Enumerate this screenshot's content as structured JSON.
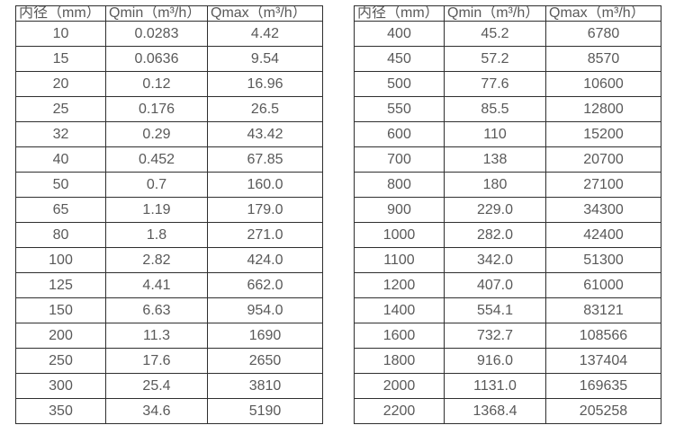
{
  "colors": {
    "table_border": "#2f2f2f",
    "table_text": "#595959",
    "background": "#ffffff"
  },
  "chart_data": [
    {
      "type": "table",
      "columns": [
        "内径（mm）",
        "Qmin（m³/h）",
        "Qmax（m³/h）"
      ],
      "rows": [
        [
          "10",
          "0.0283",
          "4.42"
        ],
        [
          "15",
          "0.0636",
          "9.54"
        ],
        [
          "20",
          "0.12",
          "16.96"
        ],
        [
          "25",
          "0.176",
          "26.5"
        ],
        [
          "32",
          "0.29",
          "43.42"
        ],
        [
          "40",
          "0.452",
          "67.85"
        ],
        [
          "50",
          "0.7",
          "160.0"
        ],
        [
          "65",
          "1.19",
          "179.0"
        ],
        [
          "80",
          "1.8",
          "271.0"
        ],
        [
          "100",
          "2.82",
          "424.0"
        ],
        [
          "125",
          "4.41",
          "662.0"
        ],
        [
          "150",
          "6.63",
          "954.0"
        ],
        [
          "200",
          "11.3",
          "1690"
        ],
        [
          "250",
          "17.6",
          "2650"
        ],
        [
          "300",
          "25.4",
          "3810"
        ],
        [
          "350",
          "34.6",
          "5190"
        ]
      ]
    },
    {
      "type": "table",
      "columns": [
        "内径（mm）",
        "Qmin（m³/h）",
        "Qmax（m³/h）"
      ],
      "rows": [
        [
          "400",
          "45.2",
          "6780"
        ],
        [
          "450",
          "57.2",
          "8570"
        ],
        [
          "500",
          "77.6",
          "10600"
        ],
        [
          "550",
          "85.5",
          "12800"
        ],
        [
          "600",
          "110",
          "15200"
        ],
        [
          "700",
          "138",
          "20700"
        ],
        [
          "800",
          "180",
          "27100"
        ],
        [
          "900",
          "229.0",
          "34300"
        ],
        [
          "1000",
          "282.0",
          "42400"
        ],
        [
          "1100",
          "342.0",
          "51300"
        ],
        [
          "1200",
          "407.0",
          "61000"
        ],
        [
          "1400",
          "554.1",
          "83121"
        ],
        [
          "1600",
          "732.7",
          "108566"
        ],
        [
          "1800",
          "916.0",
          "137404"
        ],
        [
          "2000",
          "1131.0",
          "169635"
        ],
        [
          "2200",
          "1368.4",
          "205258"
        ]
      ]
    }
  ]
}
